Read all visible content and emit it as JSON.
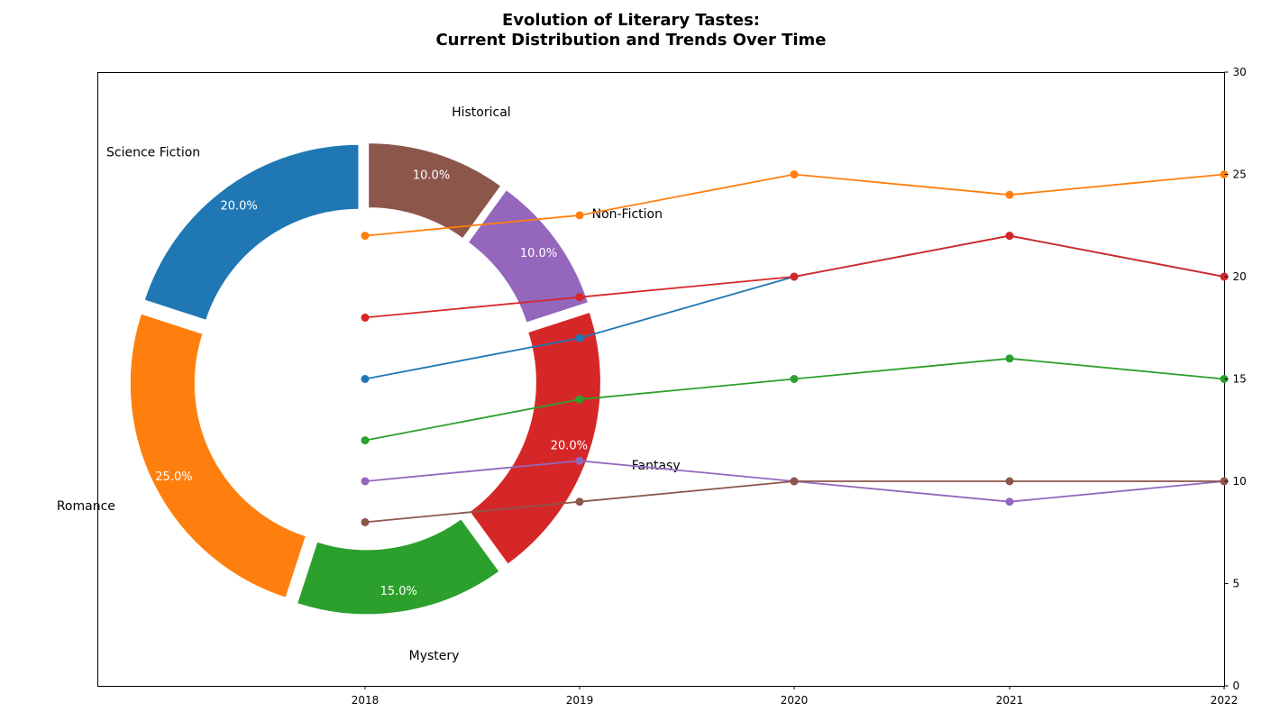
{
  "chart_data": [
    {
      "type": "pie",
      "variant": "donut",
      "labels": [
        "Science Fiction",
        "Romance",
        "Mystery",
        "Fantasy",
        "Non-Fiction",
        "Historical"
      ],
      "values": [
        20,
        25,
        15,
        20,
        10,
        10
      ],
      "pct_labels": [
        "20.0%",
        "25.0%",
        "15.0%",
        "20.0%",
        "10.0%",
        "10.0%"
      ],
      "colors": [
        "#1f77b4",
        "#ff7f0e",
        "#2ca02c",
        "#d62728",
        "#9467bd",
        "#8c564b"
      ]
    },
    {
      "type": "line",
      "x": [
        2018,
        2019,
        2020,
        2021,
        2022
      ],
      "x_tick_labels": [
        "2018",
        "2019",
        "2020",
        "2021",
        "2022"
      ],
      "ylim": [
        0,
        30
      ],
      "y_ticks": [
        0,
        5,
        10,
        15,
        20,
        25,
        30
      ],
      "y_axis_side": "right",
      "grid": false,
      "series": [
        {
          "color": "#1f77b4",
          "values": [
            15,
            17,
            20,
            22,
            20
          ]
        },
        {
          "color": "#ff7f0e",
          "values": [
            22,
            23,
            25,
            24,
            25
          ]
        },
        {
          "color": "#2ca02c",
          "values": [
            12,
            14,
            15,
            16,
            15
          ]
        },
        {
          "color": "#d62728",
          "values": [
            18,
            19,
            20,
            22,
            20
          ]
        },
        {
          "color": "#9467bd",
          "values": [
            10,
            11,
            10,
            9,
            10
          ]
        },
        {
          "color": "#8c564b",
          "values": [
            8,
            9,
            10,
            10,
            10
          ]
        }
      ]
    }
  ],
  "title_lines": [
    "Evolution of Literary Tastes:",
    "Current Distribution and Trends Over Time"
  ]
}
